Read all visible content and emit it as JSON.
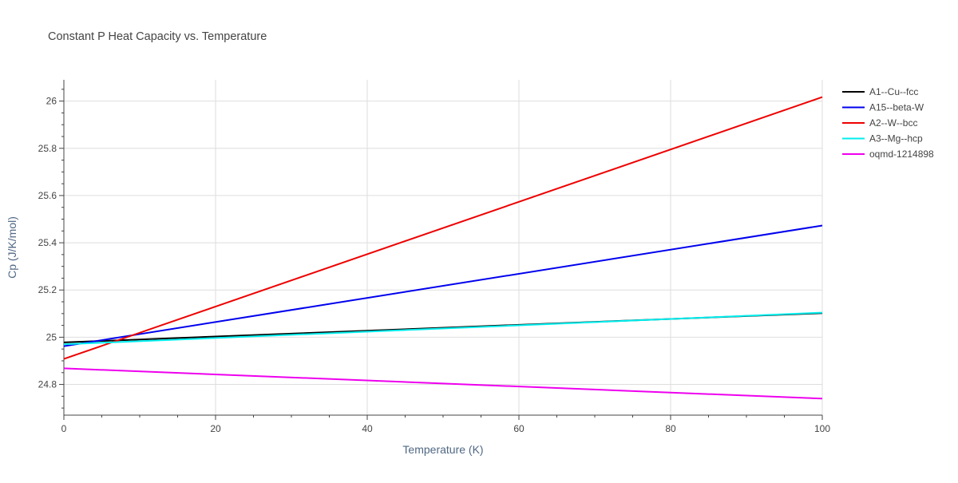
{
  "chart_data": {
    "type": "line",
    "title": "Constant P Heat Capacity vs. Temperature",
    "xlabel": "Temperature (K)",
    "ylabel": "Cp (J/K/mol)",
    "xlim": [
      0,
      100
    ],
    "ylim": [
      24.67,
      26.09
    ],
    "xticks": [
      0,
      20,
      40,
      60,
      80,
      100
    ],
    "xtick_labels": [
      "0",
      "20",
      "40",
      "60",
      "80",
      "100"
    ],
    "yticks": [
      24.8,
      25,
      25.2,
      25.4,
      25.6,
      25.8,
      26
    ],
    "ytick_labels": [
      "24.8",
      "25",
      "25.2",
      "25.4",
      "25.6",
      "25.8",
      "26"
    ],
    "grid": true,
    "legend_position": "top-right",
    "series": [
      {
        "name": "A1--Cu--fcc",
        "color": "#000000",
        "x": [
          0,
          100
        ],
        "y": [
          24.978,
          25.102
        ]
      },
      {
        "name": "A15--beta-W",
        "color": "#0000ee",
        "x": [
          0,
          100
        ],
        "y": [
          24.962,
          25.473
        ]
      },
      {
        "name": "A2--W--bcc",
        "color": "#ee0000",
        "x": [
          0,
          100
        ],
        "y": [
          24.908,
          26.017
        ]
      },
      {
        "name": "A3--Mg--hcp",
        "color": "#00eeee",
        "x": [
          0,
          100
        ],
        "y": [
          24.97,
          25.104
        ]
      },
      {
        "name": "oqmd-1214898",
        "color": "#ee00ee",
        "x": [
          0,
          100
        ],
        "y": [
          24.868,
          24.74
        ]
      }
    ]
  }
}
